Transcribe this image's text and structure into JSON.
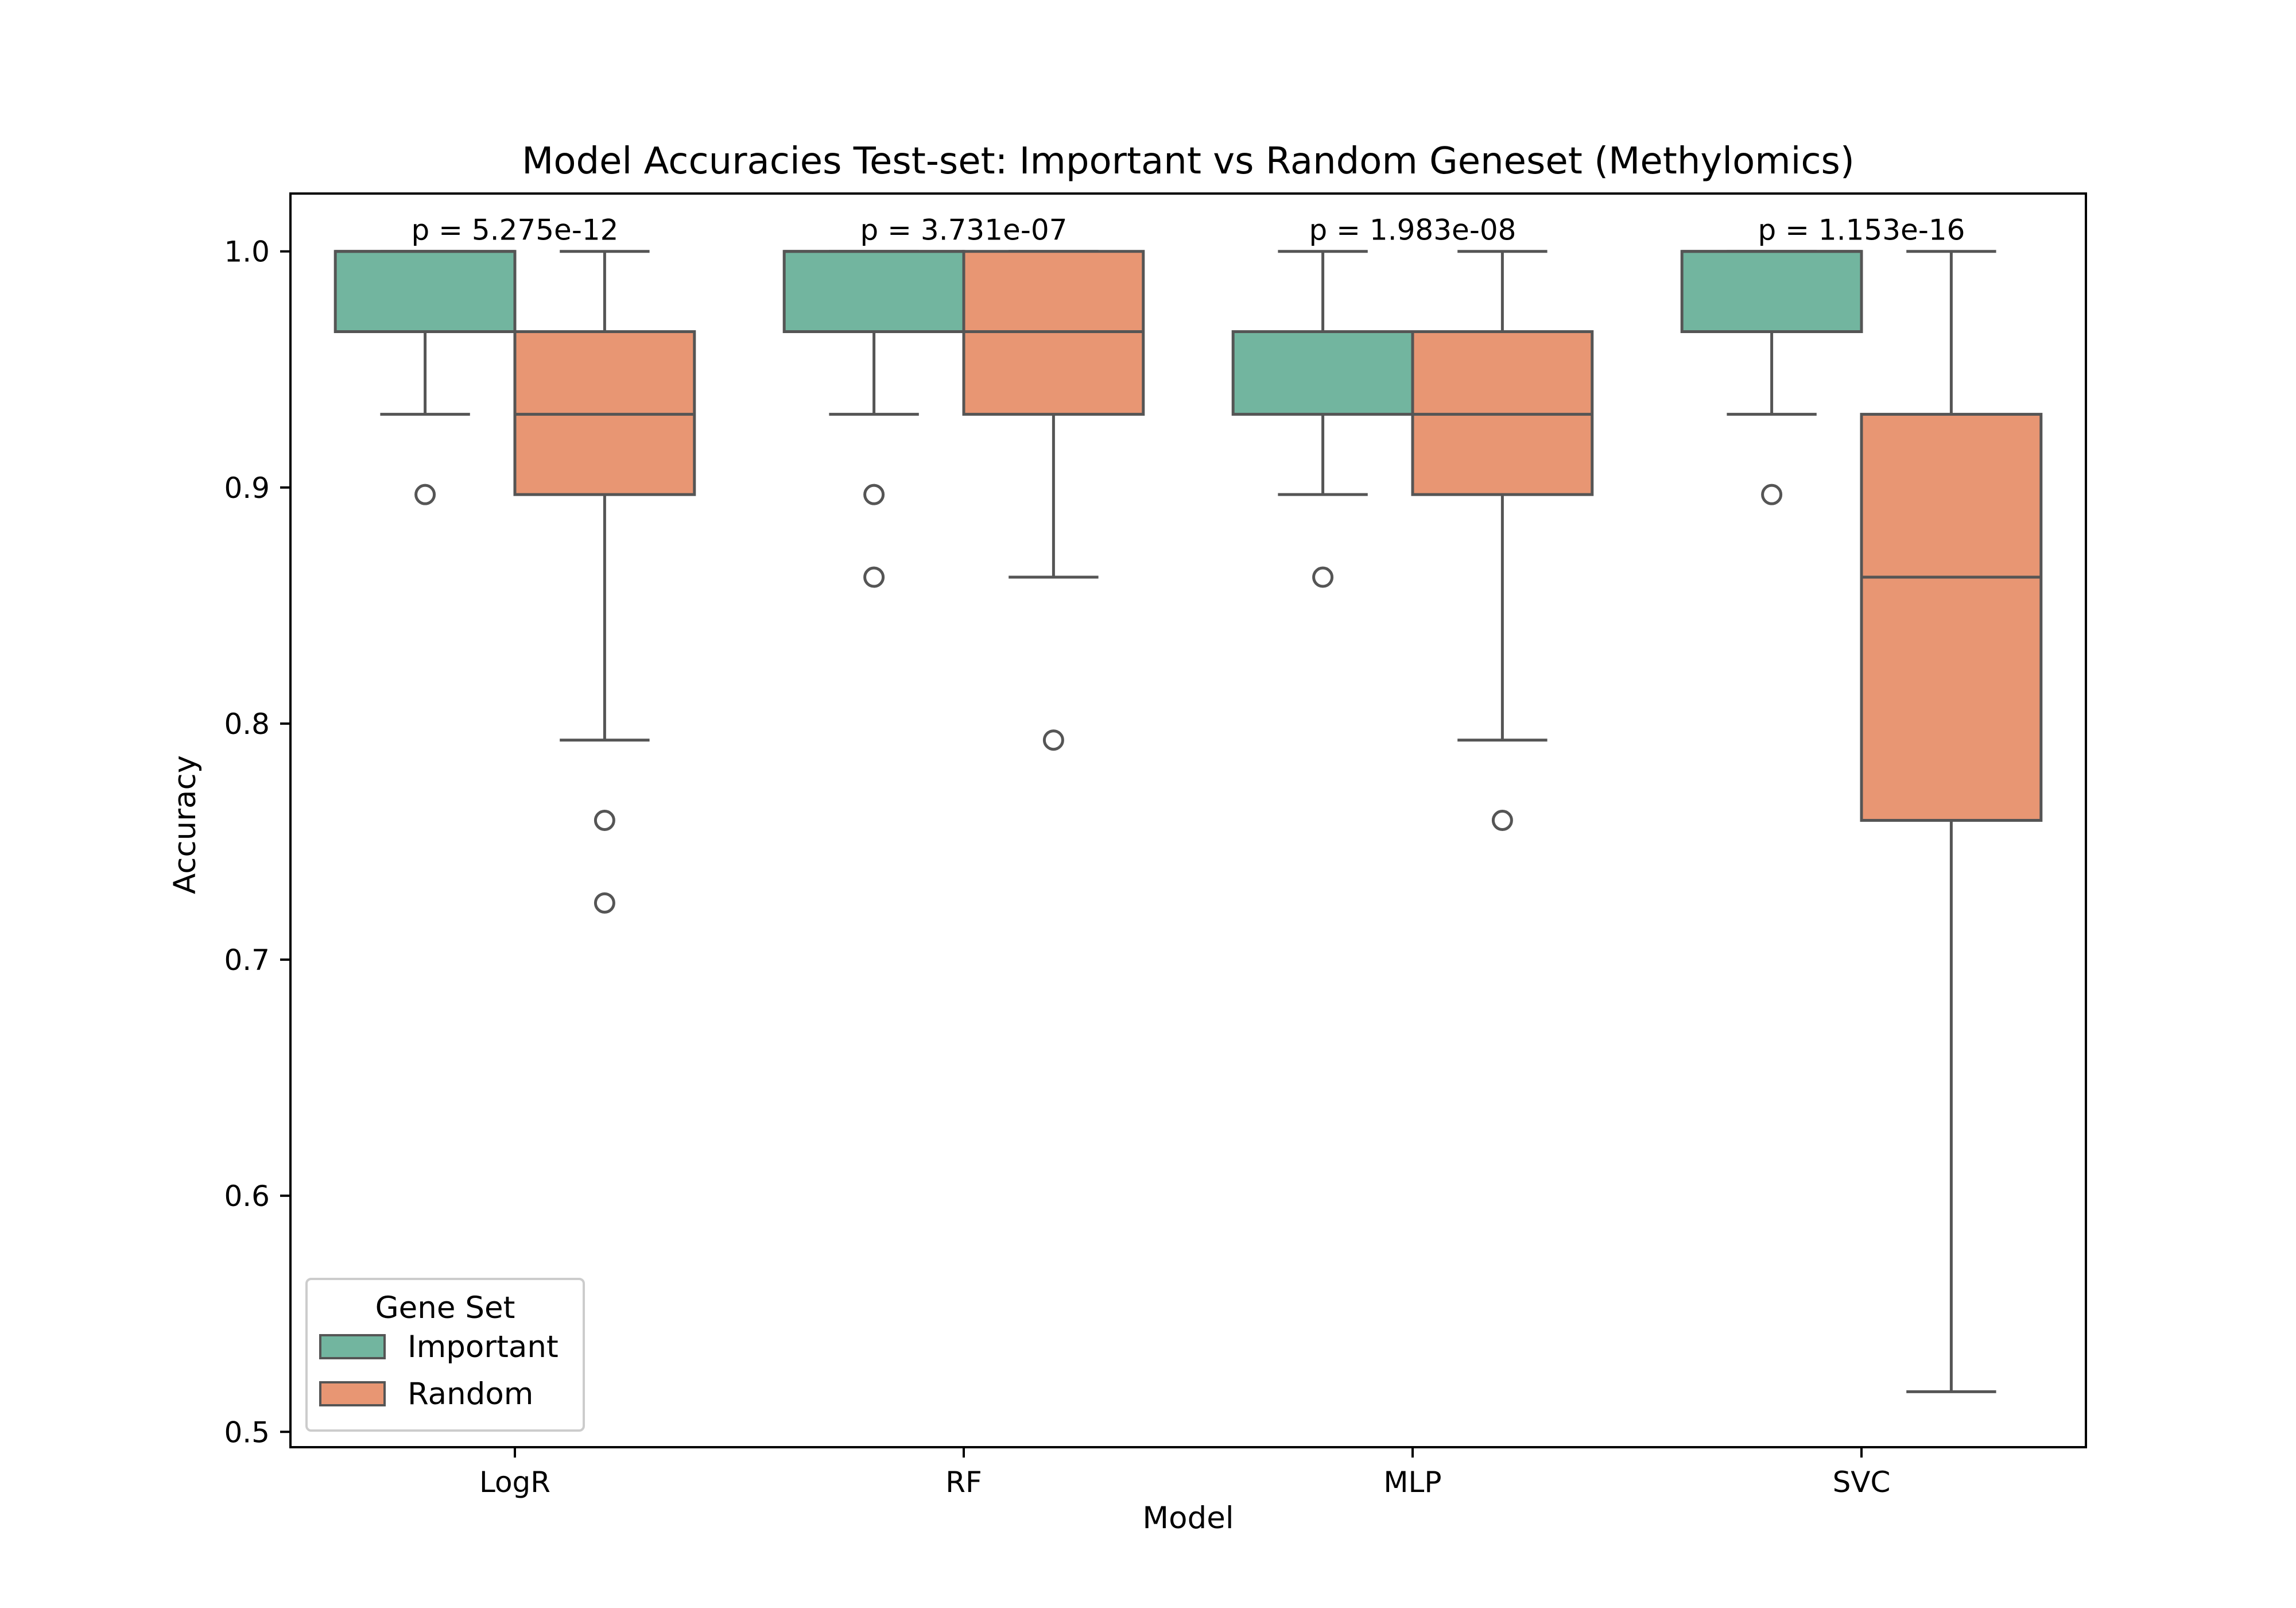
{
  "chart_data": {
    "type": "box",
    "title": "Model Accuracies Test-set: Important vs Random Geneset (Methylomics)",
    "xlabel": "Model",
    "ylabel": "Accuracy",
    "ylim": [
      0.4935,
      1.0245
    ],
    "yticks": [
      0.5,
      0.6,
      0.7,
      0.8,
      0.9,
      1.0
    ],
    "yticklabels": [
      "0.5",
      "0.6",
      "0.7",
      "0.8",
      "0.9",
      "1.0"
    ],
    "categories": [
      "LogR",
      "RF",
      "MLP",
      "SVC"
    ],
    "grid": false,
    "legend": {
      "title": "Gene Set",
      "placement": "lower-left"
    },
    "series": [
      {
        "name": "Important",
        "color": "#72b59f",
        "boxes": [
          {
            "q1": 0.966,
            "median": 1.0,
            "q3": 1.0,
            "whisker_low": 0.931,
            "whisker_high": 1.0,
            "outliers": [
              0.897
            ]
          },
          {
            "q1": 0.966,
            "median": 1.0,
            "q3": 1.0,
            "whisker_low": 0.931,
            "whisker_high": 1.0,
            "outliers": [
              0.897,
              0.862
            ]
          },
          {
            "q1": 0.931,
            "median": 0.966,
            "q3": 0.966,
            "whisker_low": 0.897,
            "whisker_high": 1.0,
            "outliers": [
              0.862
            ]
          },
          {
            "q1": 0.966,
            "median": 1.0,
            "q3": 1.0,
            "whisker_low": 0.931,
            "whisker_high": 1.0,
            "outliers": [
              0.897
            ]
          }
        ]
      },
      {
        "name": "Random",
        "color": "#e89673",
        "boxes": [
          {
            "q1": 0.897,
            "median": 0.931,
            "q3": 0.966,
            "whisker_low": 0.793,
            "whisker_high": 1.0,
            "outliers": [
              0.759,
              0.724
            ]
          },
          {
            "q1": 0.931,
            "median": 0.966,
            "q3": 1.0,
            "whisker_low": 0.862,
            "whisker_high": 1.0,
            "outliers": [
              0.793
            ]
          },
          {
            "q1": 0.897,
            "median": 0.931,
            "q3": 0.966,
            "whisker_low": 0.793,
            "whisker_high": 1.0,
            "outliers": [
              0.759
            ]
          },
          {
            "q1": 0.759,
            "median": 0.862,
            "q3": 0.931,
            "whisker_low": 0.517,
            "whisker_high": 1.0,
            "outliers": []
          }
        ]
      }
    ],
    "annotations": [
      "p = 5.275e-12",
      "p = 3.731e-07",
      "p = 1.983e-08",
      "p = 1.153e-16"
    ]
  }
}
